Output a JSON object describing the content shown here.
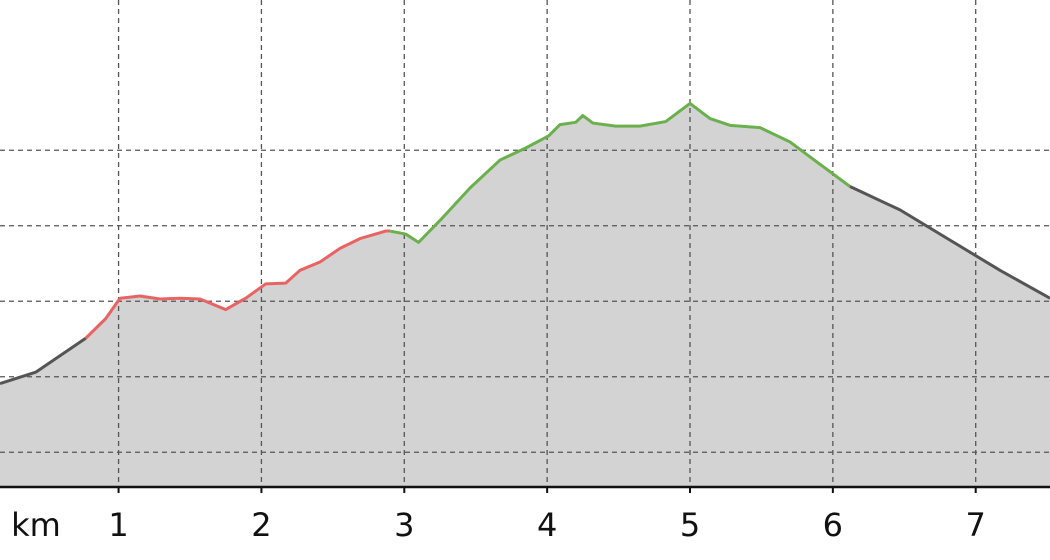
{
  "chart_data": {
    "type": "elevation-profile",
    "x_label": "km",
    "xlim": [
      0.17,
      7.52
    ],
    "xticks": [
      1,
      2,
      3,
      4,
      5,
      6,
      7
    ],
    "ylim": [
      0.54,
      6.99
    ],
    "yticks": [
      1,
      2,
      3,
      4,
      5
    ],
    "grid": true,
    "area_color": "#d3d3d3",
    "series": [
      {
        "color": "#555555",
        "x": [
          0.17,
          0.42,
          0.77
        ],
        "values": [
          1.91,
          2.06,
          2.51
        ]
      },
      {
        "color": "#e86464",
        "x": [
          0.77,
          0.91,
          1.01,
          1.15,
          1.29,
          1.43,
          1.57,
          1.75,
          1.89,
          2.03,
          2.17,
          2.27,
          2.41,
          2.55,
          2.69,
          2.87,
          2.9
        ],
        "values": [
          2.51,
          2.77,
          3.04,
          3.07,
          3.03,
          3.04,
          3.03,
          2.89,
          3.04,
          3.23,
          3.24,
          3.41,
          3.52,
          3.7,
          3.83,
          3.93,
          3.93
        ]
      },
      {
        "color": "#6ab04c",
        "x": [
          2.9,
          3.01,
          3.1,
          3.25,
          3.46,
          3.67,
          3.85,
          4.01,
          4.09,
          4.2,
          4.25,
          4.32,
          4.48,
          4.65,
          4.83,
          5.0,
          5.14,
          5.28,
          5.49,
          5.7,
          5.87,
          6.12
        ],
        "values": [
          3.93,
          3.89,
          3.78,
          4.07,
          4.5,
          4.87,
          5.03,
          5.19,
          5.34,
          5.37,
          5.46,
          5.36,
          5.32,
          5.32,
          5.38,
          5.62,
          5.42,
          5.33,
          5.3,
          5.11,
          4.87,
          4.52
        ]
      },
      {
        "color": "#555555",
        "x": [
          6.12,
          6.47,
          6.82,
          7.17,
          7.52
        ],
        "values": [
          4.52,
          4.21,
          3.81,
          3.41,
          3.04
        ]
      }
    ]
  }
}
